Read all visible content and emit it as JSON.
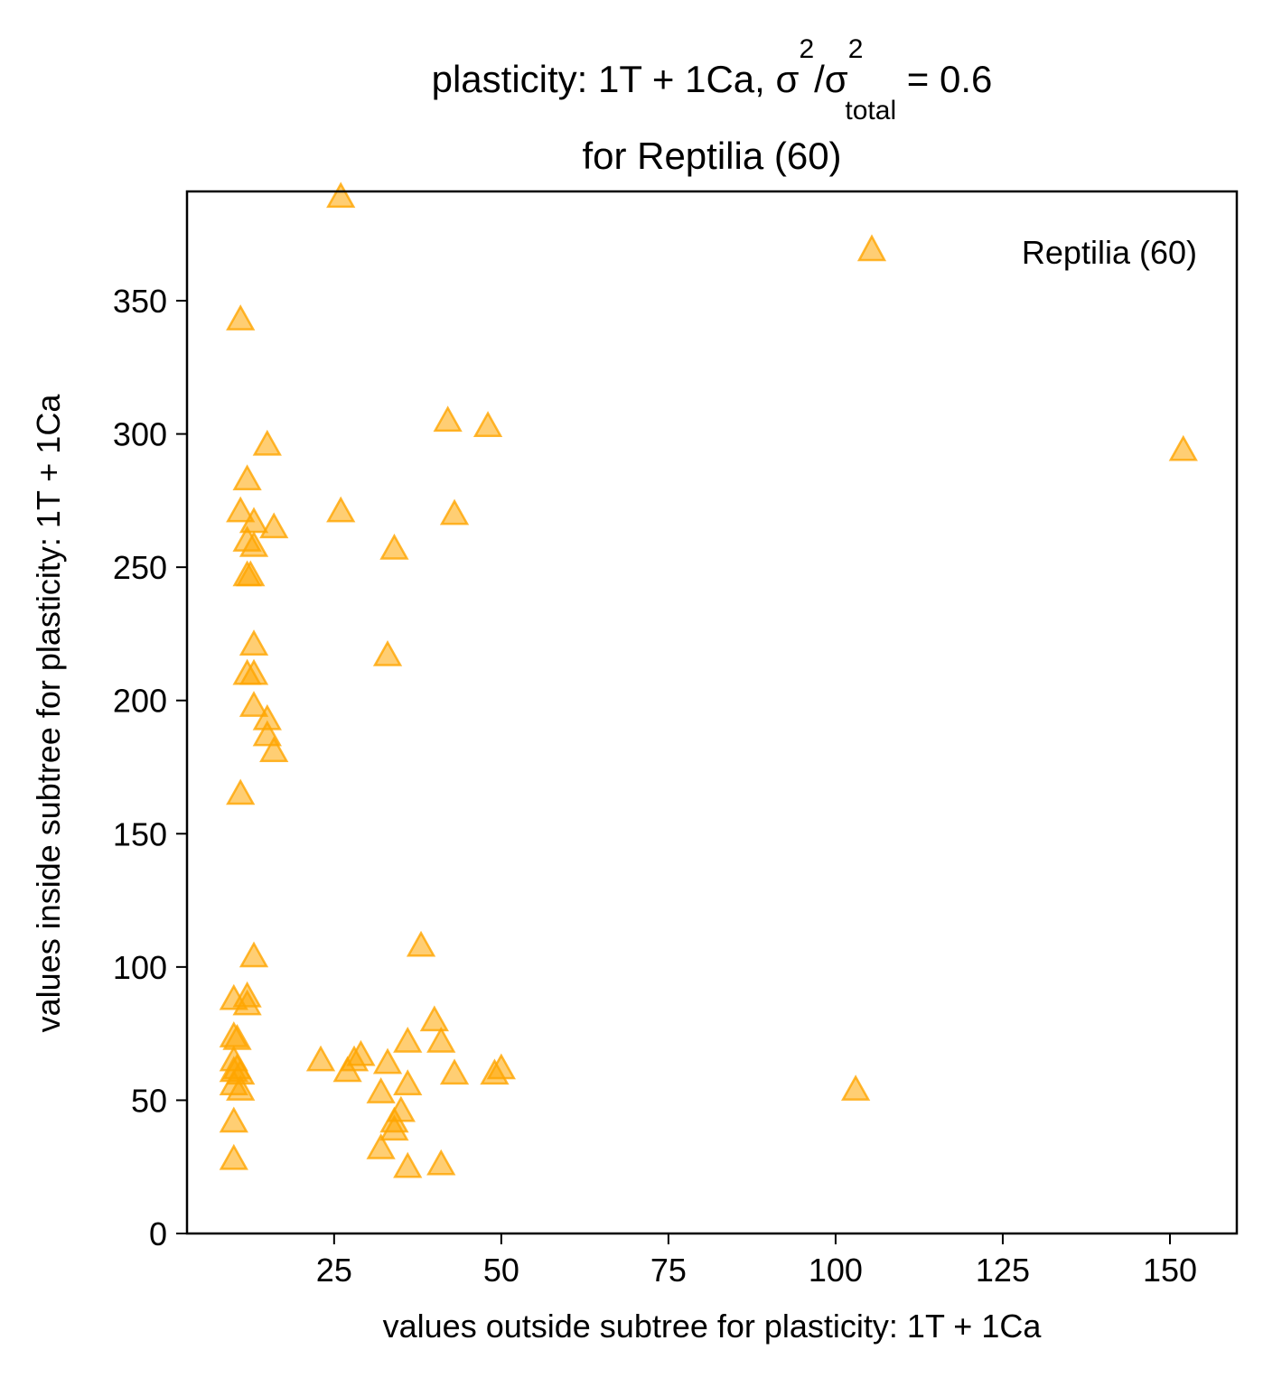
{
  "chart_data": {
    "type": "scatter",
    "title": {
      "main": "plasticity: 1T + 1Ca, σ",
      "sup1": "2",
      "slash": "/σ",
      "sup2": "2",
      "sub": "total",
      "tail": " =  0.6",
      "line2": "for Reptilia (60)"
    },
    "xlabel": "values outside subtree for plasticity: 1T + 1Ca",
    "ylabel": "values inside subtree for plasticity: 1T + 1Ca",
    "xlim": [
      3,
      160
    ],
    "ylim": [
      0,
      391
    ],
    "xticks": [
      25,
      50,
      75,
      100,
      125,
      150
    ],
    "yticks": [
      0,
      50,
      100,
      150,
      200,
      250,
      300,
      350
    ],
    "grid": false,
    "legend_position": "top-right",
    "marker": "triangle",
    "color": "#ffa500",
    "series": [
      {
        "name": "Reptilia (60)",
        "points": [
          [
            26,
            389
          ],
          [
            11,
            343
          ],
          [
            42,
            305
          ],
          [
            48,
            303
          ],
          [
            152,
            294
          ],
          [
            15,
            296
          ],
          [
            12,
            283
          ],
          [
            11,
            271
          ],
          [
            26,
            271
          ],
          [
            43,
            270
          ],
          [
            13,
            267
          ],
          [
            16,
            265
          ],
          [
            12,
            260
          ],
          [
            13,
            258
          ],
          [
            34,
            257
          ],
          [
            12,
            247
          ],
          [
            12.5,
            247
          ],
          [
            13,
            221
          ],
          [
            33,
            217
          ],
          [
            12,
            210
          ],
          [
            13,
            210
          ],
          [
            13,
            198
          ],
          [
            15,
            193
          ],
          [
            15,
            187
          ],
          [
            16,
            181
          ],
          [
            11,
            165
          ],
          [
            13,
            104
          ],
          [
            38,
            108
          ],
          [
            10,
            88
          ],
          [
            12,
            89
          ],
          [
            12,
            86
          ],
          [
            40,
            80
          ],
          [
            10,
            74
          ],
          [
            10.5,
            73
          ],
          [
            41,
            72
          ],
          [
            36,
            72
          ],
          [
            10,
            65
          ],
          [
            10.5,
            62
          ],
          [
            10,
            61
          ],
          [
            11,
            60
          ],
          [
            23,
            65
          ],
          [
            29,
            67
          ],
          [
            27,
            61
          ],
          [
            28,
            65
          ],
          [
            33,
            64
          ],
          [
            43,
            60
          ],
          [
            50,
            62
          ],
          [
            49,
            60
          ],
          [
            36,
            56
          ],
          [
            10,
            56
          ],
          [
            11,
            54
          ],
          [
            103,
            54
          ],
          [
            32,
            53
          ],
          [
            35,
            46
          ],
          [
            34,
            42
          ],
          [
            34,
            39
          ],
          [
            10,
            42
          ],
          [
            32,
            32
          ],
          [
            10,
            28
          ],
          [
            36,
            25
          ],
          [
            41,
            26
          ]
        ]
      }
    ]
  }
}
